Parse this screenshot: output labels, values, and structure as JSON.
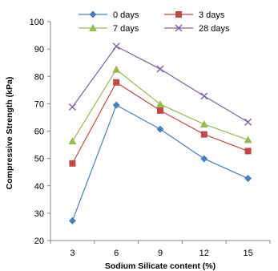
{
  "chart_data": {
    "type": "line",
    "xlabel": "Sodium Silicate content (%)",
    "ylabel": "Compressive Strength (kPa)",
    "x": [
      3,
      6,
      9,
      12,
      15
    ],
    "x_ticks": [
      "3",
      "6",
      "9",
      "12",
      "15"
    ],
    "ylim": [
      20,
      100
    ],
    "y_ticks": [
      "20",
      "30",
      "40",
      "50",
      "60",
      "70",
      "80",
      "90",
      "100"
    ],
    "grid": false,
    "legend_position": "top",
    "series": [
      {
        "name": "0 days",
        "values": [
          27.2,
          69.5,
          60.7,
          49.9,
          42.7
        ],
        "color": "#4A7EBB",
        "marker": "diamond"
      },
      {
        "name": "3 days",
        "values": [
          48.2,
          77.8,
          67.5,
          58.8,
          52.7
        ],
        "color": "#BE4B48",
        "marker": "square"
      },
      {
        "name": "7 days",
        "values": [
          56.3,
          82.5,
          69.8,
          62.5,
          56.8
        ],
        "color": "#98B954",
        "marker": "triangle"
      },
      {
        "name": "28 days",
        "values": [
          68.8,
          91.0,
          82.7,
          72.8,
          63.3
        ],
        "color": "#7D60A0",
        "marker": "x"
      }
    ]
  }
}
